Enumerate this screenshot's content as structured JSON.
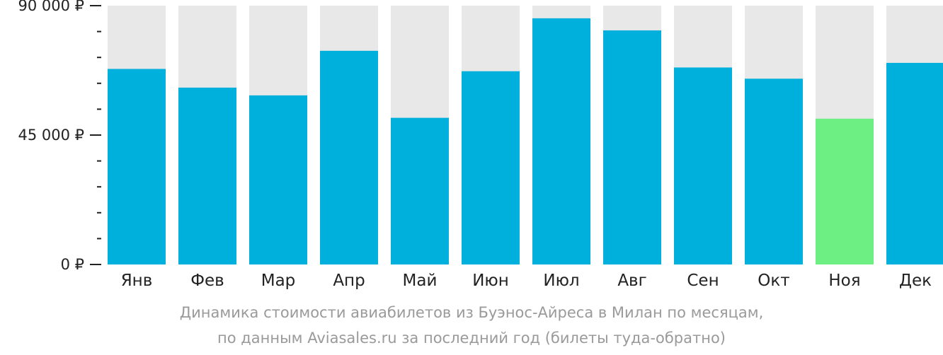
{
  "chart_data": {
    "type": "bar",
    "categories": [
      "Янв",
      "Фев",
      "Мар",
      "Апр",
      "Май",
      "Июн",
      "Июл",
      "Авг",
      "Сен",
      "Окт",
      "Ноя",
      "Дек"
    ],
    "values": [
      68000,
      61500,
      58800,
      74300,
      51000,
      67200,
      85600,
      81400,
      68500,
      64600,
      50700,
      70100
    ],
    "ylim": [
      0,
      90000
    ],
    "y_ticks": [
      {
        "value": 0,
        "label": "0 ₽"
      },
      {
        "value": 45000,
        "label": "45 000 ₽"
      },
      {
        "value": 90000,
        "label": "90 000 ₽"
      }
    ],
    "y_minor_step": 9000,
    "highlight_index": 10,
    "colors": {
      "bar": "#00b0dc",
      "highlight": "#6def84",
      "background_bar": "#e8e8e8",
      "axis": "#222222"
    },
    "caption": [
      "Динамика стоимости авиабилетов из Буэнос-Айреса в Милан по месяцам,",
      "по данным Aviasales.ru за последний год (билеты туда-обратно)"
    ]
  }
}
